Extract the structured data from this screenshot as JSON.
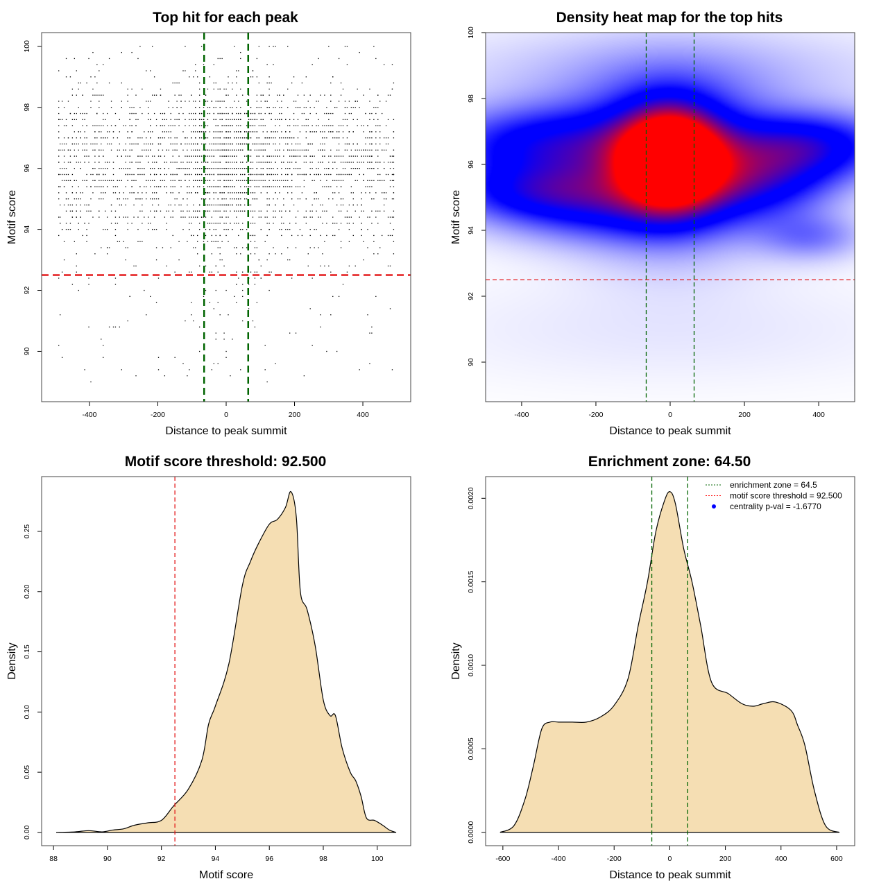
{
  "chart_data": [
    {
      "type": "scatter",
      "title": "Top hit for each peak",
      "xlabel": "Distance to peak summit",
      "ylabel": "Motif score",
      "xlim": [
        -540,
        540
      ],
      "ylim": [
        88.35,
        100.45
      ],
      "xticks": [
        -400,
        -200,
        0,
        200,
        400
      ],
      "yticks": [
        90,
        92,
        94,
        96,
        98,
        100
      ],
      "hlines": [
        {
          "value": 92.5,
          "color": "#e31a1c",
          "style": "dashed"
        }
      ],
      "vlines": [
        {
          "value": -64.5,
          "color": "#006400",
          "style": "dashed"
        },
        {
          "value": 64.5,
          "color": "#006400",
          "style": "dashed"
        }
      ],
      "point_color": "#000000",
      "grid": false
    },
    {
      "type": "heatmap",
      "title": "Density heat map for the top hits",
      "xlabel": "Distance to peak summit",
      "ylabel": "Motif score",
      "xlim": [
        -497,
        497
      ],
      "ylim": [
        88.8,
        100
      ],
      "xticks": [
        -400,
        -200,
        0,
        200,
        400
      ],
      "yticks": [
        90,
        92,
        94,
        96,
        98,
        100
      ],
      "color_scale": [
        "#ffffff",
        "#0000ff",
        "#ff0000"
      ],
      "density_peak": {
        "x": 0,
        "y": 96.2
      },
      "hlines": [
        {
          "value": 92.5,
          "color": "#e31a1c",
          "style": "dashed"
        }
      ],
      "vlines": [
        {
          "value": -64.5,
          "color": "#006400",
          "style": "dashed"
        },
        {
          "value": 64.5,
          "color": "#006400",
          "style": "dashed"
        }
      ],
      "grid": false
    },
    {
      "type": "area",
      "title": "Motif score threshold: 92.500",
      "xlabel": "Motif score",
      "ylabel": "Density",
      "xlim": [
        87.56,
        101.24
      ],
      "ylim": [
        -0.011,
        0.2955
      ],
      "xticks": [
        "88",
        "90",
        "92",
        "94",
        "96",
        "98",
        "100"
      ],
      "yticks": [
        "0.00",
        "0.05",
        "0.10",
        "0.15",
        "0.20",
        "0.25"
      ],
      "fill": "#f5deb3",
      "vlines": [
        {
          "value": 92.5,
          "color": "#e31a1c",
          "style": "dashed"
        }
      ],
      "x": [
        88.1,
        88.8,
        89.3,
        89.8,
        90.2,
        90.6,
        91.0,
        91.5,
        92.0,
        92.45,
        93.0,
        93.5,
        93.75,
        94.0,
        94.5,
        95.0,
        95.3,
        95.6,
        96.0,
        96.3,
        96.6,
        96.8,
        97.0,
        97.15,
        97.4,
        97.7,
        98.0,
        98.25,
        98.45,
        98.7,
        99.0,
        99.2,
        99.4,
        99.6,
        99.9,
        100.2,
        100.45,
        100.7
      ],
      "y": [
        0,
        0.0005,
        0.0015,
        0.0005,
        0.002,
        0.003,
        0.006,
        0.008,
        0.01,
        0.022,
        0.036,
        0.06,
        0.09,
        0.105,
        0.14,
        0.205,
        0.225,
        0.24,
        0.256,
        0.26,
        0.27,
        0.283,
        0.262,
        0.2,
        0.185,
        0.155,
        0.11,
        0.097,
        0.097,
        0.07,
        0.05,
        0.043,
        0.03,
        0.012,
        0.01,
        0.006,
        0.002,
        0
      ],
      "grid": false
    },
    {
      "type": "area",
      "title": "Enrichment zone: 64.50",
      "xlabel": "Distance to peak summit",
      "ylabel": "Density",
      "xlim": [
        -662,
        665
      ],
      "ylim": [
        -8e-05,
        0.00213
      ],
      "xticks": [
        "-600",
        "-400",
        "-200",
        "0",
        "200",
        "400",
        "600"
      ],
      "yticks": [
        "0.0000",
        "0.0005",
        "0.0010",
        "0.0015",
        "0.0020"
      ],
      "fill": "#f5deb3",
      "vlines": [
        {
          "value": -64.5,
          "color": "#006400",
          "style": "dashed"
        },
        {
          "value": 64.5,
          "color": "#006400",
          "style": "dashed"
        }
      ],
      "x": [
        -610,
        -560,
        -520,
        -490,
        -460,
        -430,
        -400,
        -350,
        -300,
        -250,
        -200,
        -150,
        -113,
        -80,
        -50,
        -20,
        0,
        20,
        50,
        80,
        111,
        150,
        211,
        260,
        300,
        336,
        380,
        436,
        460,
        486,
        520,
        560,
        610
      ],
      "y": [
        0,
        4e-05,
        0.0002,
        0.0004,
        0.00062,
        0.00066,
        0.00066,
        0.00066,
        0.00066,
        0.00069,
        0.00076,
        0.00092,
        0.00124,
        0.0015,
        0.0018,
        0.00198,
        0.00204,
        0.00197,
        0.0017,
        0.0015,
        0.00124,
        0.0009,
        0.00083,
        0.00077,
        0.000755,
        0.00077,
        0.00078,
        0.00073,
        0.00064,
        0.00052,
        0.00025,
        4e-05,
        0
      ],
      "legend": {
        "position": "top-right",
        "items": [
          {
            "label": "enrichment zone = 64.5",
            "color": "#006400",
            "style": "dotted-line"
          },
          {
            "label": "motif score threshold = 92.500",
            "color": "#ff0000",
            "style": "dotted-line"
          },
          {
            "label": "centrality p-val = -1.6770",
            "color": "#0000ff",
            "style": "point"
          }
        ]
      },
      "grid": false
    }
  ]
}
